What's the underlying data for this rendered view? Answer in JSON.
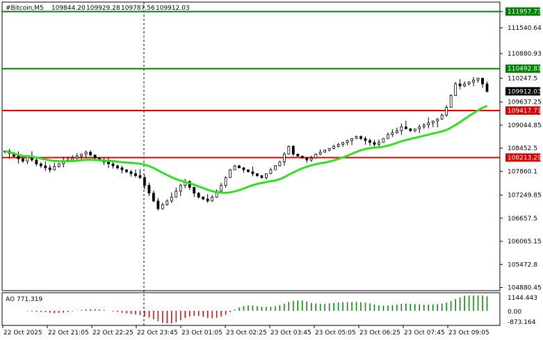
{
  "header": {
    "symbol": "#Bitcoin,M5",
    "open": "109844.20",
    "high": "109929.28",
    "low": "109787.56",
    "close": "109912.03"
  },
  "colors": {
    "candle": "#000000",
    "ma": "#33dd22",
    "resistance": "#008000",
    "support": "#dd0000",
    "ao_up": "#008000",
    "ao_down": "#dd0000",
    "price_label_bg": "#000000"
  },
  "price_axis": {
    "ticks": [
      "111957.73",
      "111540.64",
      "110880.93",
      "110247.5",
      "109637.25",
      "109044.85",
      "108452.5",
      "107860.1",
      "107249.85",
      "106657.5",
      "106065.15",
      "105472.8",
      "104880.45"
    ],
    "current_price": "109912.03"
  },
  "levels": [
    {
      "price": "111957.73",
      "kind": "resistance"
    },
    {
      "price": "110492.81",
      "kind": "resistance"
    },
    {
      "price": "109417.71",
      "kind": "support"
    },
    {
      "price": "108213.29",
      "kind": "support"
    }
  ],
  "oscillator": {
    "title": "AO 771.319",
    "ticks": [
      "1144.443",
      "0.00",
      "-873.164"
    ]
  },
  "time_axis": {
    "labels": [
      "22 Oct 2025",
      "22 Oct 21:05",
      "22 Oct 22:25",
      "22 Oct 23:45",
      "23 Oct 01:05",
      "23 Oct 02:25",
      "23 Oct 03:45",
      "23 Oct 05:05",
      "23 Oct 06:25",
      "23 Oct 07:45",
      "23 Oct 09:05"
    ]
  },
  "chart_data": {
    "type": "candlestick",
    "symbol": "#Bitcoin",
    "timeframe": "M5",
    "ylim": [
      104800,
      112200
    ],
    "close_series": [
      108380,
      108320,
      108250,
      108180,
      108120,
      108240,
      108150,
      108050,
      108000,
      107950,
      107900,
      107980,
      108050,
      108100,
      108150,
      108200,
      108250,
      108300,
      108350,
      108280,
      108200,
      108150,
      108100,
      108050,
      108000,
      107950,
      107900,
      107850,
      107800,
      107750,
      107700,
      107500,
      107300,
      107100,
      106900,
      107000,
      107100,
      107200,
      107350,
      107500,
      107600,
      107450,
      107300,
      107200,
      107150,
      107100,
      107200,
      107350,
      107500,
      107700,
      107900,
      108000,
      107950,
      107900,
      107850,
      107800,
      107750,
      107700,
      107800,
      107900,
      108000,
      108100,
      108300,
      108500,
      108300,
      108250,
      108200,
      108150,
      108200,
      108300,
      108350,
      108400,
      108450,
      108500,
      108550,
      108600,
      108650,
      108700,
      108750,
      108700,
      108650,
      108600,
      108550,
      108600,
      108700,
      108800,
      108850,
      108900,
      109000,
      108950,
      108900,
      108950,
      109000,
      109050,
      109100,
      109150,
      109200,
      109300,
      109500,
      109800,
      110100,
      110050,
      110100,
      110150,
      110200,
      110250,
      110100,
      109912
    ]
  }
}
